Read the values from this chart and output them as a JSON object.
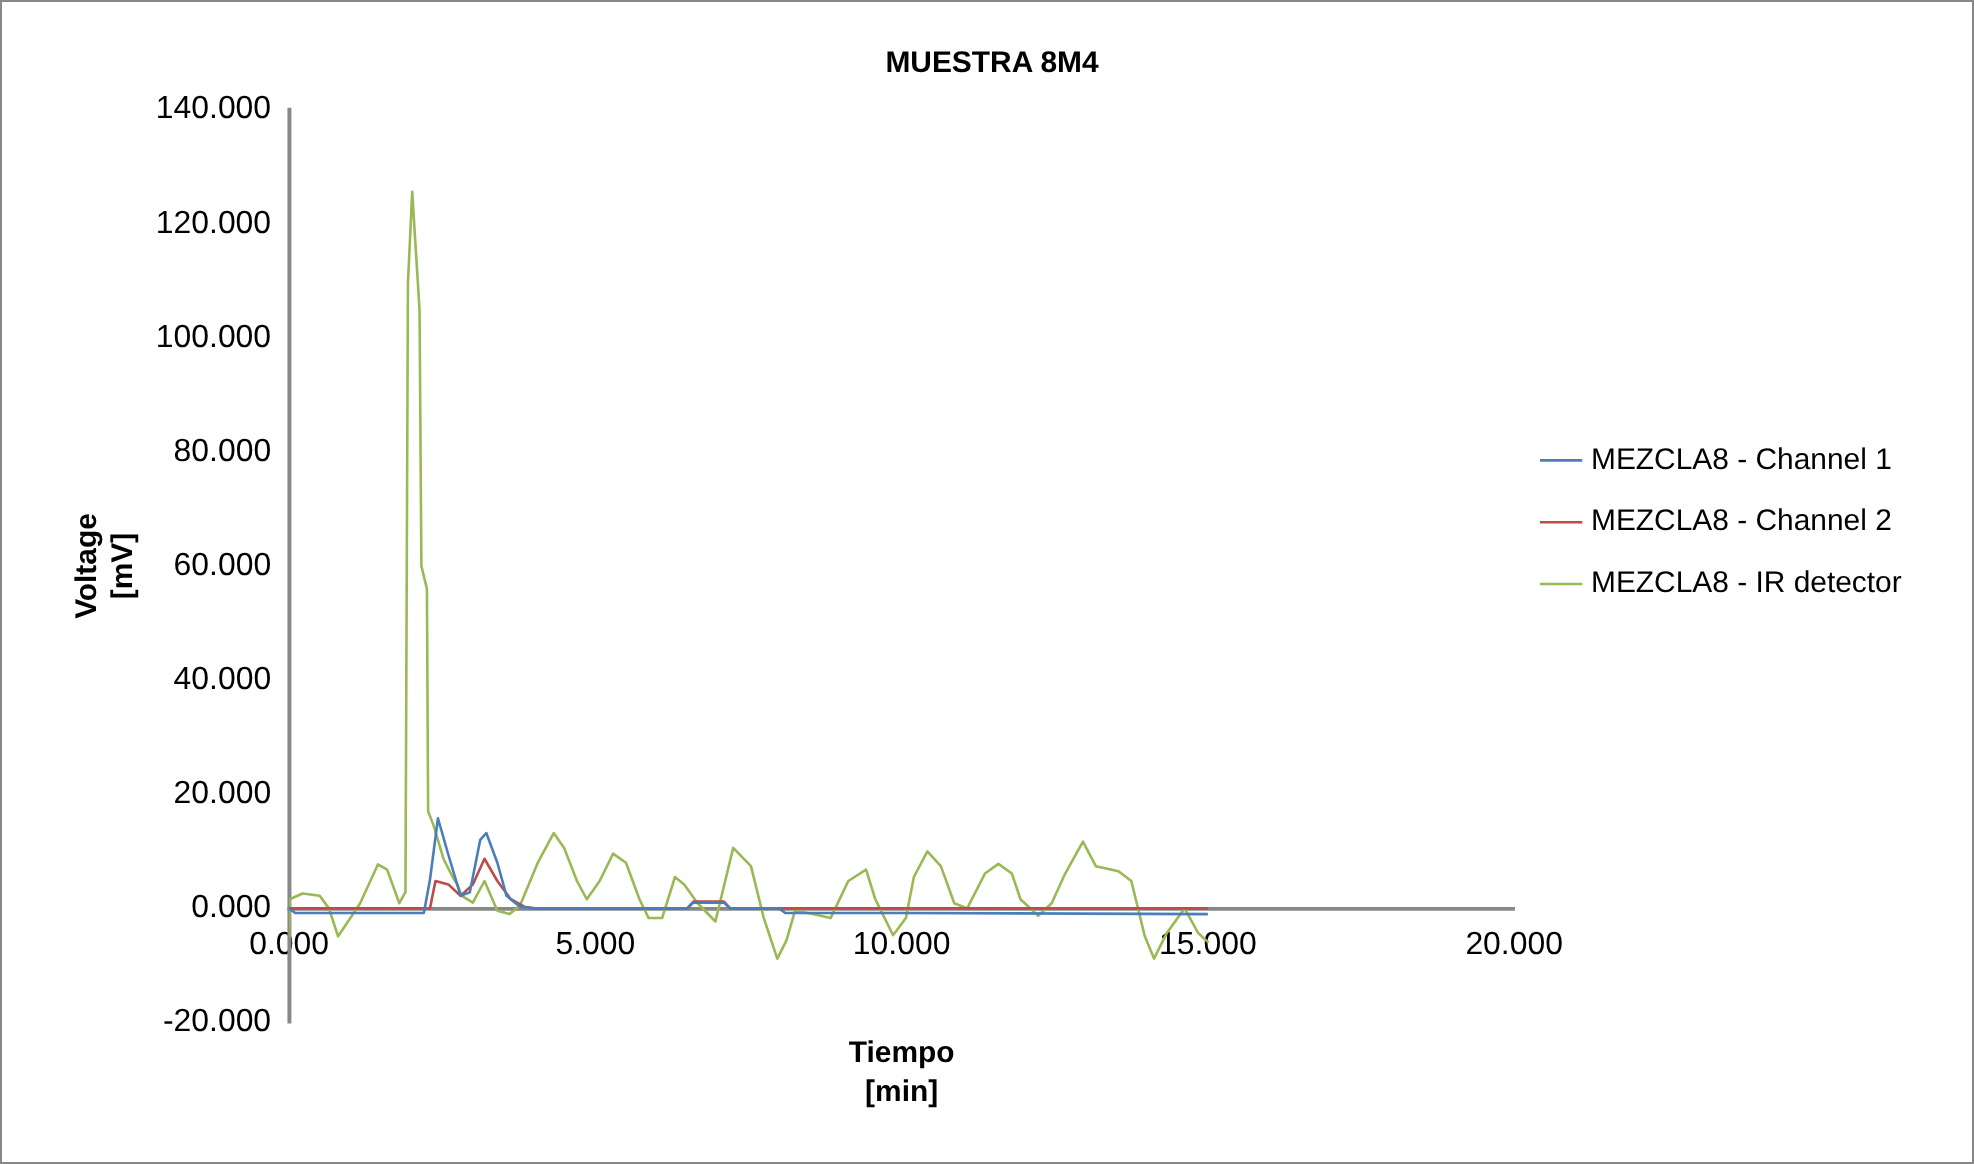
{
  "chart_data": {
    "type": "line",
    "title": "MUESTRA 8M4",
    "xlabel": "Tiempo\n[min]",
    "ylabel": "Voltage\n[mV]",
    "xlim": [
      0,
      20
    ],
    "xticks": [
      {
        "value": 0,
        "label": "0.000"
      },
      {
        "value": 5,
        "label": "5.000"
      },
      {
        "value": 10,
        "label": "10.000"
      },
      {
        "value": 15,
        "label": "15.000"
      },
      {
        "value": 20,
        "label": "20.000"
      }
    ],
    "ylim": [
      -20,
      140
    ],
    "yticks": [
      {
        "value": -20,
        "label": "-20.000"
      },
      {
        "value": 0,
        "label": "0.000"
      },
      {
        "value": 20,
        "label": "20.000"
      },
      {
        "value": 40,
        "label": "40.000"
      },
      {
        "value": 60,
        "label": "60.000"
      },
      {
        "value": 80,
        "label": "80.000"
      },
      {
        "value": 100,
        "label": "100.000"
      },
      {
        "value": 120,
        "label": "120.000"
      },
      {
        "value": 140,
        "label": "140.000"
      }
    ],
    "grid": false,
    "legend": "right",
    "marker": "none",
    "series": [
      {
        "name": "MEZCLA8 - Channel 1",
        "color": "#4a7ebb",
        "x": [
          0,
          0.1,
          2.2,
          2.3,
          2.43,
          2.6,
          2.8,
          2.95,
          3.12,
          3.22,
          3.4,
          3.55,
          3.77,
          4.0,
          6.5,
          6.6,
          7.1,
          7.2,
          8.0,
          8.1,
          10.0,
          15.0
        ],
        "values": [
          0,
          -0.8,
          -0.8,
          5,
          15.8,
          9.4,
          2.2,
          2.8,
          12,
          13.2,
          8,
          2.2,
          0.3,
          0,
          0,
          1,
          1,
          0,
          0,
          -0.8,
          -0.8,
          -1
        ]
      },
      {
        "name": "MEZCLA8 - Channel 2",
        "color": "#be4b48",
        "x": [
          0,
          2.3,
          2.39,
          2.6,
          2.8,
          3.0,
          3.19,
          3.4,
          3.62,
          3.84,
          4.0,
          6.5,
          6.6,
          7.1,
          7.2,
          15.0
        ],
        "values": [
          0,
          0,
          4.8,
          4.2,
          2.2,
          4.2,
          8.7,
          4.8,
          1.6,
          0.3,
          0,
          0,
          1.2,
          1.2,
          0,
          0
        ]
      },
      {
        "name": "MEZCLA8 - IR detector",
        "color": "#98b954",
        "x": [
          0,
          0.01,
          0.22,
          0.5,
          0.65,
          0.8,
          1.0,
          1.16,
          1.45,
          1.6,
          1.8,
          1.9,
          1.94,
          2.01,
          2.13,
          2.16,
          2.25,
          2.27,
          2.36,
          2.52,
          2.67,
          2.74,
          2.82,
          3.0,
          3.19,
          3.4,
          3.6,
          3.77,
          4.06,
          4.32,
          4.49,
          4.7,
          4.86,
          5.07,
          5.29,
          5.5,
          5.72,
          5.87,
          6.09,
          6.3,
          6.45,
          6.67,
          6.96,
          7.25,
          7.54,
          7.75,
          7.97,
          8.12,
          8.26,
          8.55,
          8.84,
          9.13,
          9.42,
          9.57,
          9.86,
          10.07,
          10.2,
          10.42,
          10.64,
          10.86,
          11.07,
          11.36,
          11.58,
          11.8,
          11.94,
          12.23,
          12.45,
          12.67,
          12.96,
          13.17,
          13.54,
          13.75,
          13.97,
          14.12,
          14.33,
          14.62,
          14.84,
          15.01
        ],
        "values": [
          -5,
          1.6,
          2.6,
          2.2,
          0,
          -4.9,
          -1.7,
          0.9,
          7.7,
          6.8,
          0.9,
          2.9,
          109.5,
          125.6,
          104.8,
          60,
          56,
          17,
          14.5,
          8.7,
          5.5,
          4.3,
          2.2,
          1,
          4.8,
          -0.4,
          -1,
          0.5,
          8,
          13.2,
          10.6,
          4.8,
          1.6,
          4.8,
          9.6,
          8,
          1.6,
          -1.7,
          -1.7,
          5.5,
          4.2,
          0.9,
          -2.3,
          10.6,
          7.4,
          -1.7,
          -8.8,
          -5.6,
          -0.4,
          -1,
          -1.7,
          4.8,
          6.8,
          1.6,
          -4.7,
          -1.7,
          5.5,
          10,
          7.4,
          0.9,
          0,
          6.1,
          7.8,
          6.1,
          1.6,
          -1.3,
          0.9,
          6.1,
          11.7,
          7.4,
          6.5,
          4.8,
          -4.9,
          -8.8,
          -4.3,
          0,
          -4.3,
          -6
        ]
      }
    ]
  }
}
